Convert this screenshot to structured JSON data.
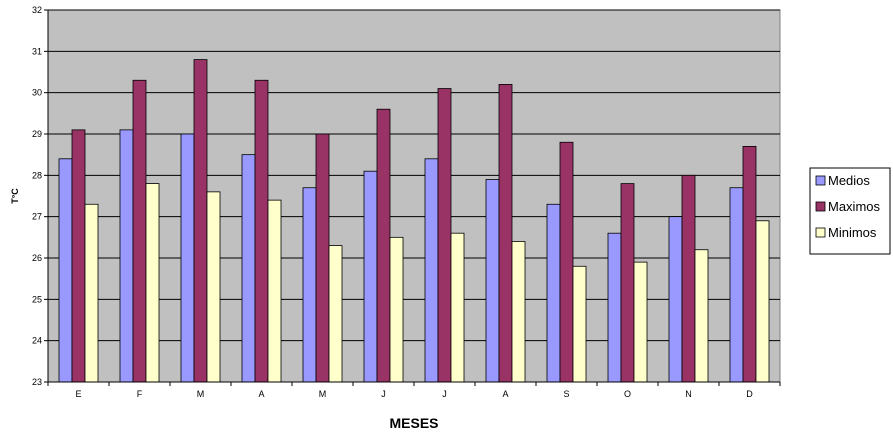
{
  "chart_data": {
    "type": "bar",
    "title": "",
    "xlabel": "MESES",
    "ylabel": "T°C",
    "ylim": [
      23,
      32
    ],
    "yticks": [
      23,
      24,
      25,
      26,
      27,
      28,
      29,
      30,
      31,
      32
    ],
    "grid": true,
    "legend_position": "right",
    "categories": [
      "E",
      "F",
      "M",
      "A",
      "M",
      "J",
      "J",
      "A",
      "S",
      "O",
      "N",
      "D"
    ],
    "series": [
      {
        "name": "Medios",
        "color": "#9999FF",
        "values": [
          28.4,
          29.1,
          29.0,
          28.5,
          27.7,
          28.1,
          28.4,
          27.9,
          27.3,
          26.6,
          27.0,
          27.7
        ]
      },
      {
        "name": "Maximos",
        "color": "#993366",
        "values": [
          29.1,
          30.3,
          30.8,
          30.3,
          29.0,
          29.6,
          30.1,
          30.2,
          28.8,
          27.8,
          28.0,
          28.7
        ]
      },
      {
        "name": "Minimos",
        "color": "#FFFFCC",
        "values": [
          27.3,
          27.8,
          27.6,
          27.4,
          26.3,
          26.5,
          26.6,
          26.4,
          25.8,
          25.9,
          26.2,
          26.9
        ]
      }
    ],
    "colors": {
      "plot_background": "#C0C0C0",
      "gridline": "#000000"
    }
  }
}
